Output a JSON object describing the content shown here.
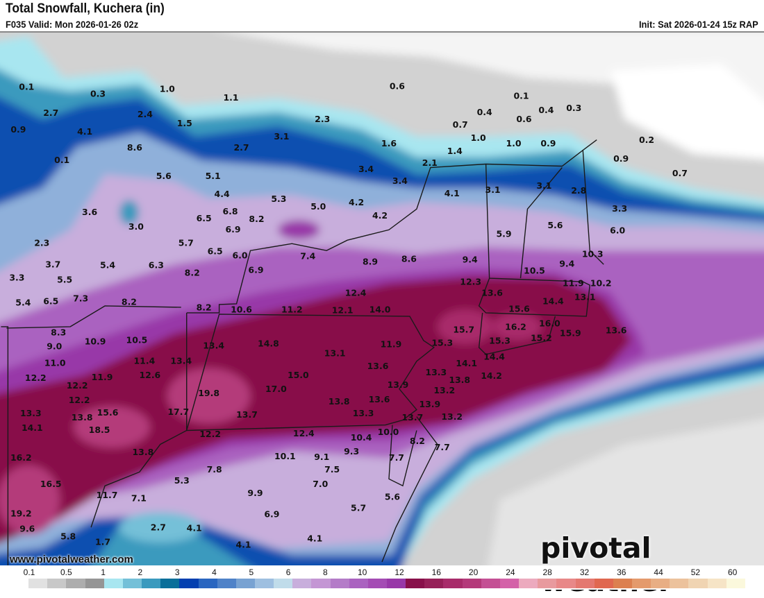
{
  "header": {
    "title": "Total Snowfall, Kuchera (in)",
    "valid": "F035 Valid: Mon 2026-01-26 02z",
    "init": "Init: Sat 2026-01-24 15z RAP"
  },
  "map": {
    "labels": [
      "0.1",
      "0.3",
      "1.0",
      "0.6",
      "1.1",
      "0.1",
      "0.4",
      "0.4",
      "0.3",
      "2.7",
      "2.4",
      "1.5",
      "2.3",
      "0.7",
      "0.6",
      "0.9",
      "4.1",
      "1.0",
      "1.0",
      "0.9",
      "0.2",
      "8.6",
      "3.1",
      "2.7",
      "1.6",
      "1.4",
      "0.1",
      "0.9",
      "2.1",
      "3.4",
      "0.7",
      "5.6",
      "5.1",
      "3.4",
      "4.1",
      "3.1",
      "3.1",
      "2.8",
      "4.4",
      "5.3",
      "4.2",
      "5.0",
      "3.3",
      "3.6",
      "6.8",
      "4.2",
      "6.5",
      "8.2",
      "3.0",
      "5.6",
      "6.0",
      "6.9",
      "5.9",
      "2.3",
      "5.7",
      "6.5",
      "6.0",
      "7.4",
      "10.3",
      "3.7",
      "5.4",
      "6.3",
      "8.9",
      "8.6",
      "9.4",
      "9.4",
      "6.9",
      "10.5",
      "8.2",
      "3.3",
      "5.5",
      "12.3",
      "11.9",
      "10.2",
      "7.3",
      "8.2",
      "12.4",
      "13.6",
      "5.4",
      "6.5",
      "14.4",
      "13.1",
      "8.2",
      "10.6",
      "11.2",
      "12.1",
      "14.0",
      "15.6",
      "15.7",
      "16.2",
      "16.0",
      "8.3",
      "15.9",
      "13.6",
      "9.0",
      "10.9",
      "10.5",
      "13.4",
      "14.8",
      "13.1",
      "11.9",
      "15.3",
      "15.3",
      "15.2",
      "11.0",
      "11.4",
      "13.4",
      "14.1",
      "14.4",
      "13.6",
      "12.6",
      "11.9",
      "15.0",
      "13.3",
      "14.2",
      "12.2",
      "12.2",
      "13.9",
      "13.8",
      "17.0",
      "13.2",
      "12.2",
      "19.8",
      "13.8",
      "13.6",
      "13.9",
      "13.3",
      "15.6",
      "17.7",
      "13.8",
      "13.7",
      "13.3",
      "13.7",
      "13.2",
      "18.5",
      "14.1",
      "12.2",
      "12.4",
      "10.4",
      "10.0",
      "8.2",
      "13.8",
      "9.3",
      "7.7",
      "10.1",
      "9.1",
      "16.2",
      "7.7",
      "7.8",
      "7.5",
      "16.5",
      "5.3",
      "7.0",
      "9.9",
      "11.7",
      "7.1",
      "5.6",
      "19.2",
      "6.9",
      "5.7",
      "9.6",
      "2.7",
      "4.1",
      "5.8",
      "4.1",
      "1.7",
      "4.1"
    ]
  },
  "footer": {
    "url": "www.pivotalweather.com",
    "logo": "pivotal weather"
  },
  "colorbar": {
    "ticks": [
      "0.1",
      "0.5",
      "1",
      "2",
      "3",
      "4",
      "5",
      "6",
      "8",
      "10",
      "12",
      "16",
      "20",
      "24",
      "28",
      "32",
      "36",
      "44",
      "52",
      "60"
    ],
    "colors": [
      "#ffffff",
      "#e1e1e1",
      "#c8c8c8",
      "#adadad",
      "#959595",
      "#a8e6f0",
      "#74c0d8",
      "#3a9abe",
      "#0a6f9a",
      "#0440b0",
      "#2a66c0",
      "#4f82c8",
      "#78a2d2",
      "#9ebfe0",
      "#c0dcea",
      "#c8aedc",
      "#c496d4",
      "#b47cc8",
      "#aa62c0",
      "#a44cb4",
      "#9838a8",
      "#88104a",
      "#962058",
      "#a82c6a",
      "#b43a7a",
      "#c45094",
      "#d462a8",
      "#ecaabe",
      "#e89a9e",
      "#e88888",
      "#e47870",
      "#e06850",
      "#dc8050",
      "#e49a6c",
      "#e8ae84",
      "#ecc29c",
      "#f0d4b2",
      "#f6e4c6",
      "#fbf8dc"
    ]
  }
}
